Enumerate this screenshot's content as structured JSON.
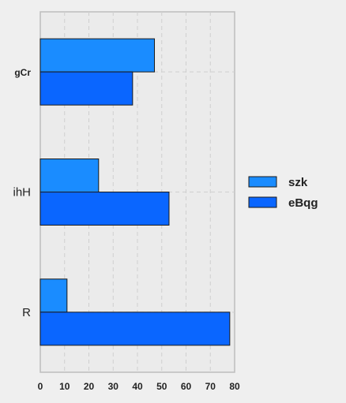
{
  "chart_data": {
    "type": "bar",
    "orientation": "horizontal",
    "categories": [
      "gCr",
      "ihH",
      "R"
    ],
    "series": [
      {
        "name": "szk",
        "values": [
          47,
          24,
          11
        ],
        "color": "#1a8cff"
      },
      {
        "name": "eBqg",
        "values": [
          38,
          53,
          78
        ],
        "color": "#0a66ff"
      }
    ],
    "xticks": [
      "0",
      "10",
      "20",
      "30",
      "40",
      "50",
      "60",
      "70",
      "80"
    ],
    "xlim": [
      0,
      80
    ],
    "xlabel": "",
    "ylabel": "",
    "title": "",
    "grid": true,
    "legend_position": "right"
  }
}
